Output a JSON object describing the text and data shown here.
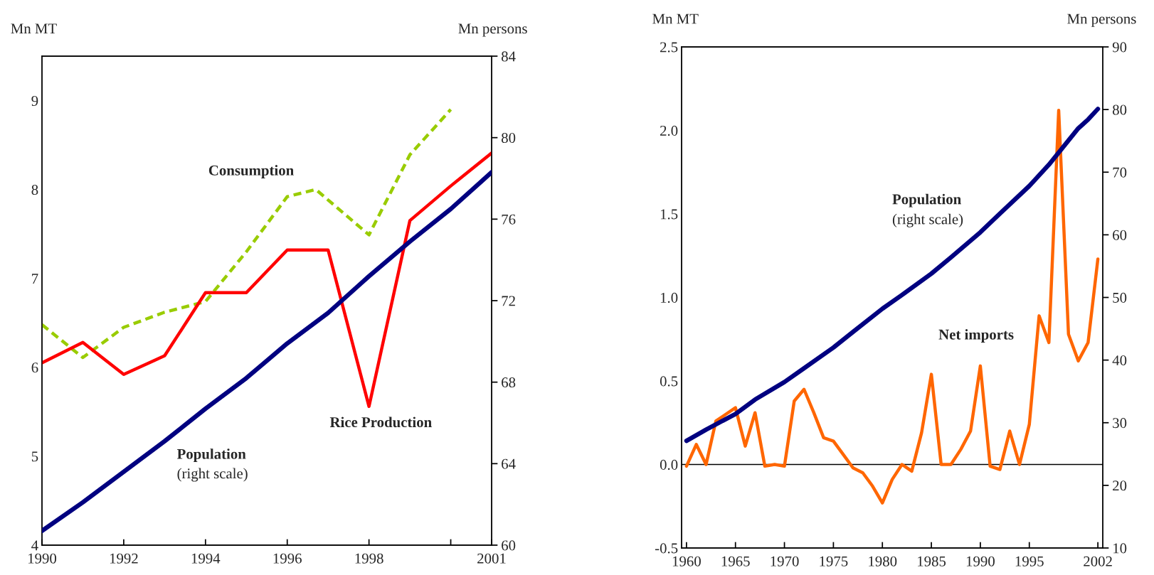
{
  "chart_data": [
    {
      "type": "line",
      "ylabel": "Mn MT",
      "y2label": "Mn persons",
      "x": [
        1990,
        1991,
        1992,
        1993,
        1994,
        1995,
        1996,
        1997,
        1998,
        1999,
        2000,
        2001
      ],
      "series": [
        {
          "name": "Consumption",
          "color": "#99cc00",
          "line_style": "dashed",
          "x": [
            1990,
            1991,
            1992,
            1993,
            1994,
            1995,
            1996,
            1996.7,
            1998,
            1999,
            2000
          ],
          "values": [
            6.48,
            6.11,
            6.45,
            6.62,
            6.74,
            7.3,
            7.92,
            8.0,
            7.49,
            8.39,
            8.9
          ]
        },
        {
          "name": "Rice Production",
          "color": "#ff0000",
          "values": [
            6.05,
            6.28,
            5.92,
            6.13,
            6.84,
            6.84,
            7.32,
            7.32,
            5.56,
            7.65,
            8.04,
            8.41
          ]
        },
        {
          "name": "Population",
          "color": "#000080",
          "axis": "y2",
          "values": [
            60.7,
            62.1,
            63.6,
            65.1,
            66.7,
            68.2,
            69.9,
            71.4,
            73.2,
            74.9,
            76.5,
            78.3
          ]
        }
      ],
      "annotations": [
        "(right scale)"
      ],
      "xlim": [
        1990,
        2001
      ],
      "xticks": [
        1990,
        1992,
        1994,
        1996,
        1998,
        {
          "value": 2000,
          "label": null
        },
        2001
      ],
      "ylim": [
        4,
        9.5
      ],
      "yticks": [
        4,
        5,
        6,
        7,
        8,
        9
      ],
      "y2lim": [
        60,
        84
      ],
      "y2ticks": [
        60,
        64,
        68,
        72,
        76,
        80,
        84
      ],
      "grid": false,
      "legend": false
    },
    {
      "type": "line",
      "ylabel": "Mn MT",
      "y2label": "Mn persons",
      "x": [
        1960,
        1961,
        1962,
        1963,
        1964,
        1965,
        1966,
        1967,
        1968,
        1969,
        1970,
        1971,
        1972,
        1973,
        1974,
        1975,
        1976,
        1977,
        1978,
        1979,
        1980,
        1981,
        1982,
        1983,
        1984,
        1985,
        1986,
        1987,
        1988,
        1989,
        1990,
        1991,
        1992,
        1993,
        1994,
        1995,
        1996,
        1997,
        1998,
        1999,
        2000,
        2001,
        2002
      ],
      "series": [
        {
          "name": "Population",
          "color": "#000080",
          "axis": "y2",
          "x": [
            1960,
            1962,
            1965,
            1967,
            1970,
            1972,
            1975,
            1977,
            1980,
            1982,
            1985,
            1987,
            1990,
            1992,
            1995,
            1997,
            2000,
            2001,
            2002
          ],
          "values": [
            27.1,
            28.9,
            31.4,
            33.7,
            36.5,
            38.7,
            42.0,
            44.5,
            48.2,
            50.4,
            53.8,
            56.4,
            60.4,
            63.4,
            67.8,
            71.2,
            77.0,
            78.4,
            80.1
          ]
        },
        {
          "name": "Net imports",
          "color": "#ff6600",
          "values": [
            -0.01,
            0.12,
            0.0,
            0.26,
            0.3,
            0.34,
            0.11,
            0.31,
            -0.01,
            0.0,
            -0.01,
            0.38,
            0.45,
            0.31,
            0.16,
            0.14,
            0.06,
            -0.02,
            -0.05,
            -0.13,
            -0.23,
            -0.09,
            0.0,
            -0.04,
            0.19,
            0.54,
            0.0,
            0.0,
            0.09,
            0.2,
            0.59,
            -0.01,
            -0.03,
            0.2,
            0.0,
            0.24,
            0.89,
            0.73,
            2.12,
            0.78,
            0.62,
            0.73,
            1.23
          ]
        }
      ],
      "annotations": [
        "(right scale)"
      ],
      "ref_lines": [
        {
          "axis": "y",
          "value": 0,
          "color": "#000000"
        }
      ],
      "xlim": [
        1959.5,
        2002.5
      ],
      "xticks": [
        1960,
        1965,
        1970,
        1975,
        1980,
        1985,
        1990,
        1995,
        2002
      ],
      "ylim": [
        -0.5,
        2.5
      ],
      "yticks": [
        {
          "value": -0.5,
          "label": "-0.5"
        },
        {
          "value": 0,
          "label": "0.0"
        },
        {
          "value": 0.5,
          "label": "0.5"
        },
        {
          "value": 1,
          "label": "1.0"
        },
        {
          "value": 1.5,
          "label": "1.5"
        },
        {
          "value": 2,
          "label": "2.0"
        },
        2.5
      ],
      "y2lim": [
        10,
        90
      ],
      "y2ticks": [
        10,
        20,
        30,
        40,
        50,
        60,
        70,
        80,
        90
      ],
      "grid": false,
      "legend": false
    }
  ]
}
